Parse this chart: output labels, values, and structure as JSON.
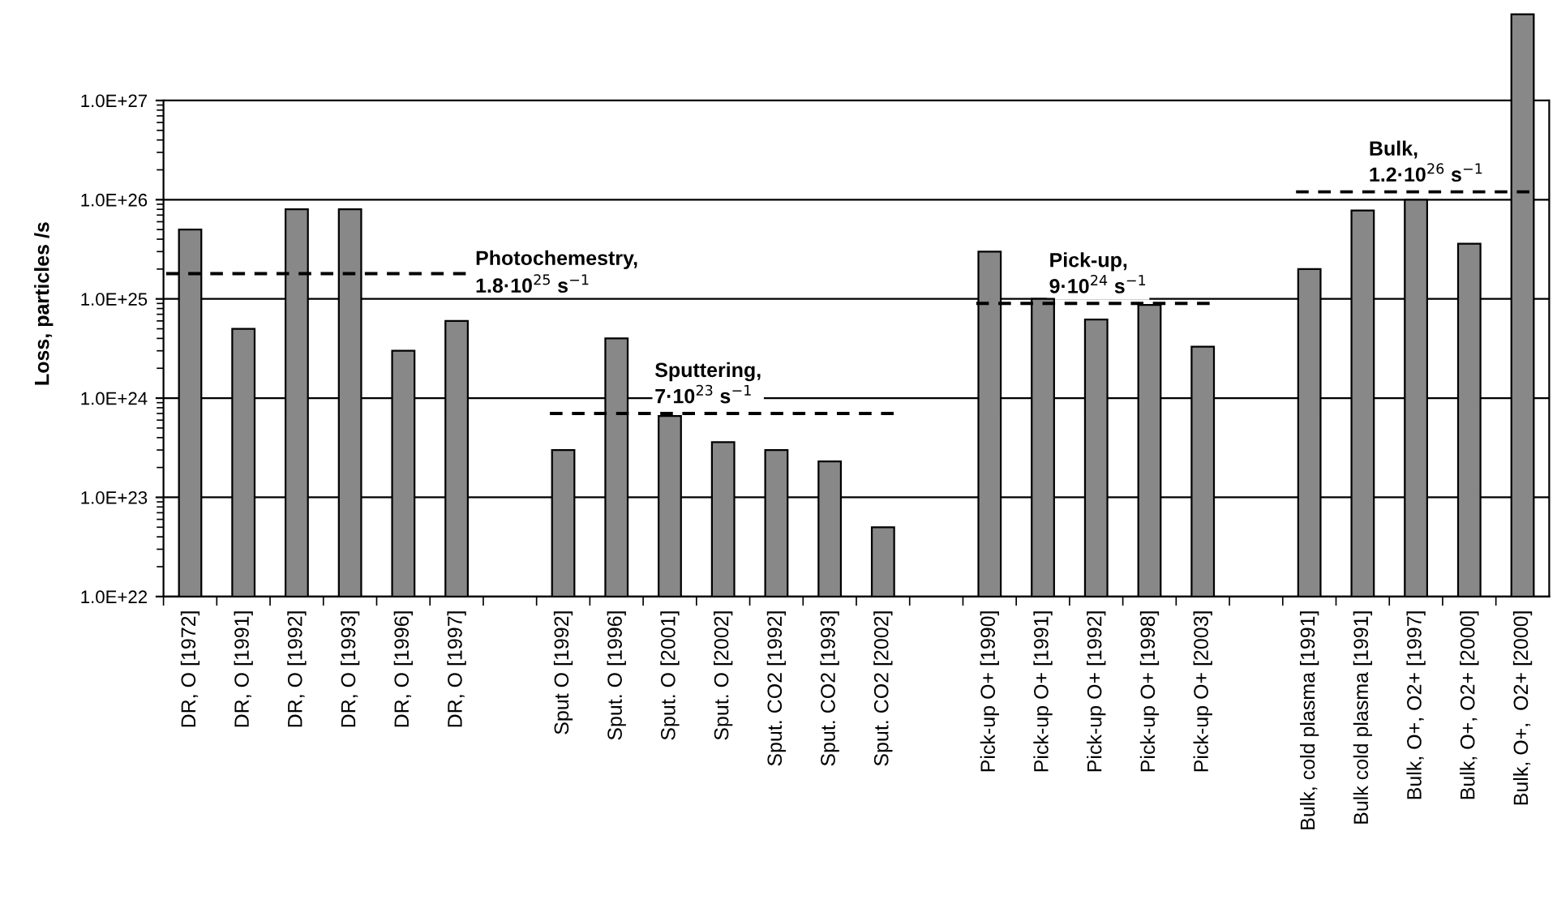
{
  "chart_data": {
    "type": "bar",
    "ylabel": "Loss, particles /s",
    "log": "y",
    "categories": [
      "DR, O [1972]",
      "DR, O [1991]",
      "DR, O [1992]",
      "DR, O [1993]",
      "DR, O [1996]",
      "DR, O [1997]",
      null,
      "Sput O [1992]",
      "Sput. O [1996]",
      "Sput. O [2001]",
      "Sput. O [2002]",
      "Sput. CO2 [1992]",
      "Sput. CO2 [1993]",
      "Sput. CO2 [2002]",
      null,
      "Pick-up O+ [1990]",
      "Pick-up O+ [1991]",
      "Pick-up O+ [1992]",
      "Pick-up O+ [1998]",
      "Pick-up O+ [2003]",
      null,
      "Bulk, cold plasma [1991]",
      "Bulk cold plasma [1991]",
      "Bulk, O+, O2+ [1997]",
      "Bulk, O+, O2+ [2000]",
      "Bulk, O+,  O2+ [2000]"
    ],
    "values": [
      5e+25,
      5e+24,
      8e+25,
      8e+25,
      3e+24,
      6e+24,
      null,
      3e+23,
      4e+24,
      6.6e+23,
      3.6e+23,
      3e+23,
      2.3e+23,
      5e+22,
      null,
      3e+25,
      1e+25,
      6.2e+24,
      8.7e+24,
      3.3e+24,
      null,
      2e+25,
      7.8e+25,
      1e+26,
      3.6e+25,
      7.4e+27
    ],
    "color": "#888888",
    "ylim": [
      1e+22,
      8e+27
    ],
    "yticks": [
      {
        "value": 1e+22,
        "label": "1.0E+22"
      },
      {
        "value": 1e+23,
        "label": "1.0E+23"
      },
      {
        "value": 1e+24,
        "label": "1.0E+24"
      },
      {
        "value": 1e+25,
        "label": "1.0E+25"
      },
      {
        "value": 1e+26,
        "label": "1.0E+26"
      },
      {
        "value": 1e+27,
        "label": "1.0E+27"
      }
    ],
    "grid": "y",
    "ref_lines": [
      {
        "axis": "y",
        "value": 1.8e+25,
        "label": "Photochemestry,\n1.8·10$^{25}$ s$^{−1}$",
        "color": "#000000",
        "line_style": "dashed"
      },
      {
        "axis": "y",
        "value": 7e+23,
        "label": "Sputtering,\n7·10$^{23}$ s$^{−1}$",
        "color": "#000000",
        "line_style": "dashed"
      },
      {
        "axis": "y",
        "value": 9e+24,
        "label": "Pick-up,\n9·10$^{24}$ s$^{−1}$",
        "color": "#000000",
        "line_style": "dashed"
      },
      {
        "axis": "y",
        "value": 1.2e+26,
        "label": "Bulk,\n1.2·10$^{26}$ s$^{−1}$",
        "color": "#000000",
        "line_style": "dashed"
      }
    ]
  }
}
